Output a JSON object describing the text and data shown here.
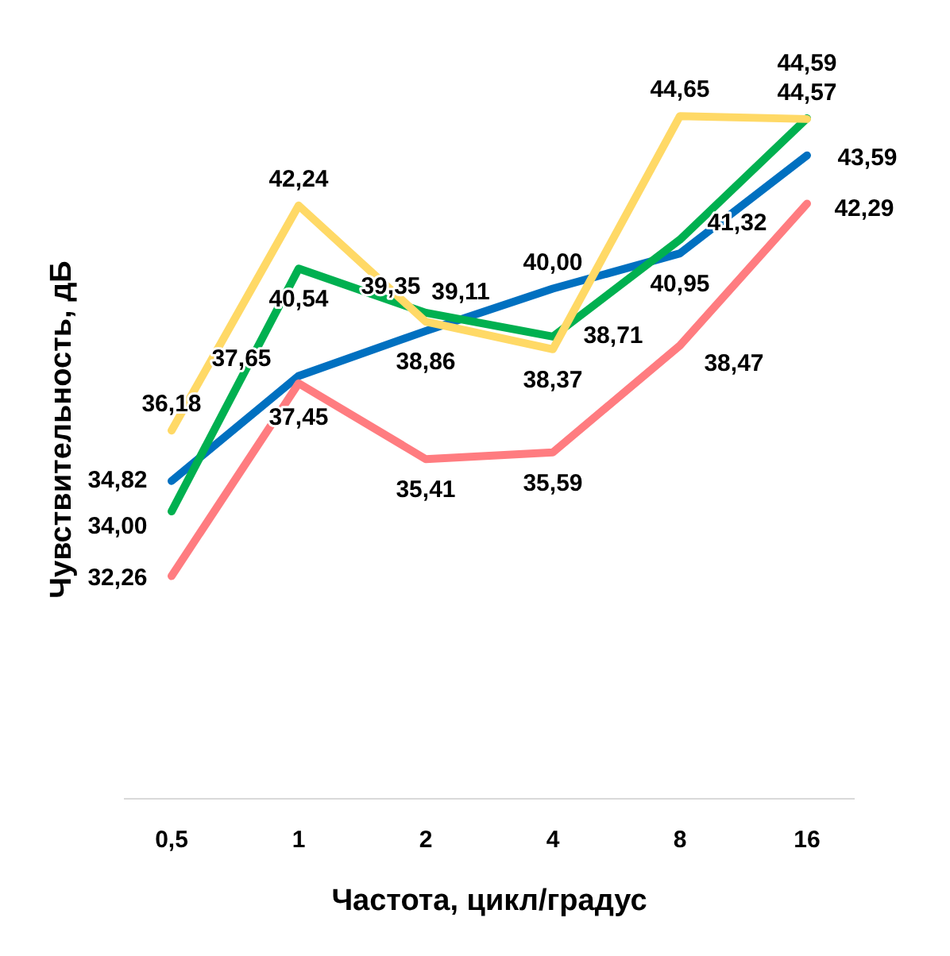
{
  "chart_data": {
    "type": "line",
    "xlabel": "Частота, цикл/градус",
    "ylabel": "Чувствительность, дБ",
    "categories": [
      "0,5",
      "1",
      "2",
      "4",
      "8",
      "16"
    ],
    "series": [
      {
        "color": "#0070c0",
        "values": [
          34.82,
          37.65,
          38.86,
          40.0,
          40.95,
          43.59
        ],
        "value_labels": [
          "34,82",
          "37,65",
          "38,86",
          "40,00",
          "40,95",
          "43,59"
        ]
      },
      {
        "color": "#00b050",
        "values": [
          34.0,
          40.54,
          39.35,
          38.71,
          41.32,
          44.59
        ],
        "value_labels": [
          "34,00",
          "40,54",
          "39,35",
          "38,71",
          "41,32",
          "44,59"
        ]
      },
      {
        "color": "#ffd966",
        "values": [
          36.18,
          42.24,
          39.11,
          38.37,
          44.65,
          44.57
        ],
        "value_labels": [
          "36,18",
          "42,24",
          "39,11",
          "38,37",
          "44,65",
          "44,57"
        ]
      },
      {
        "color": "#ff7c80",
        "values": [
          32.26,
          37.45,
          35.41,
          35.59,
          38.47,
          42.29
        ],
        "value_labels": [
          "32,26",
          "37,45",
          "35,41",
          "35,59",
          "38,47",
          "42,29"
        ]
      }
    ],
    "grid": false,
    "legend": false,
    "marker": "none",
    "line_style": "solid"
  }
}
